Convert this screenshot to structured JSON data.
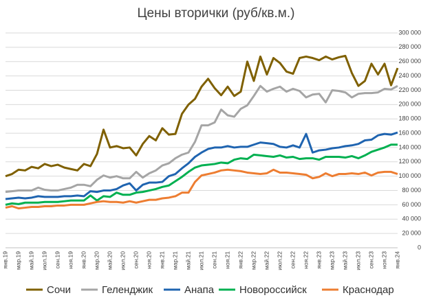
{
  "chart_data": {
    "type": "line",
    "title": "Цены вторички (руб/кв.м.)",
    "categories": [
      "янв.19",
      null,
      "мар.19",
      null,
      "май.19",
      null,
      "июл.19",
      null,
      "сен.19",
      null,
      "ноя.19",
      null,
      "янв.20",
      null,
      "мар.20",
      null,
      "май.20",
      null,
      "июл.20",
      null,
      "сен.20",
      null,
      "ноя.20",
      null,
      "янв.21",
      null,
      "мар.21",
      null,
      "май.21",
      null,
      "июл.21",
      null,
      "сен.21",
      null,
      "ноя.21",
      null,
      "янв.22",
      null,
      "мар.22",
      null,
      "май.22",
      null,
      "июл.22",
      null,
      "сен.22",
      null,
      "ноя.22",
      null,
      "янв.23",
      null,
      "мар.23",
      null,
      "май.23",
      null,
      "июл.23",
      null,
      "сен.23",
      null,
      "ноя.23",
      null,
      "янв.24"
    ],
    "series": [
      {
        "name": "Сочи",
        "color": "#7f6000",
        "values": [
          100000,
          103000,
          109000,
          108000,
          113000,
          111000,
          117000,
          114000,
          116000,
          112000,
          110000,
          108000,
          117000,
          114000,
          131000,
          165000,
          140000,
          142000,
          139000,
          140000,
          129000,
          145000,
          156000,
          150000,
          167000,
          158000,
          159000,
          187000,
          200000,
          208000,
          225000,
          236000,
          223000,
          213000,
          225000,
          212000,
          218000,
          260000,
          233000,
          267000,
          242000,
          265000,
          258000,
          246000,
          243000,
          265000,
          267000,
          265000,
          262000,
          267000,
          263000,
          266000,
          268000,
          244000,
          226000,
          233000,
          257000,
          242000,
          257000,
          227000,
          251000
        ]
      },
      {
        "name": "Геленджик",
        "color": "#a5a5a5",
        "values": [
          78000,
          79000,
          80000,
          80000,
          80000,
          84000,
          81000,
          80000,
          80000,
          82000,
          84000,
          88000,
          88000,
          86000,
          95000,
          101000,
          98000,
          100000,
          97000,
          97000,
          106000,
          98000,
          104000,
          108000,
          115000,
          118000,
          125000,
          130000,
          133000,
          148000,
          171000,
          171000,
          175000,
          193000,
          185000,
          183000,
          194000,
          199000,
          212000,
          226000,
          218000,
          222000,
          225000,
          218000,
          222000,
          219000,
          210000,
          214000,
          215000,
          203000,
          220000,
          219000,
          217000,
          210000,
          215000,
          216000,
          216000,
          217000,
          222000,
          221000,
          226000
        ]
      },
      {
        "name": "Анапа",
        "color": "#1f64b0",
        "values": [
          68000,
          69000,
          70000,
          69000,
          70000,
          72000,
          71000,
          71000,
          71000,
          72000,
          72000,
          73000,
          72000,
          79000,
          78000,
          80000,
          80000,
          82000,
          87000,
          90000,
          80000,
          88000,
          91000,
          91000,
          92000,
          100000,
          103000,
          111000,
          118000,
          127000,
          133000,
          138000,
          140000,
          140000,
          142000,
          140000,
          141000,
          141000,
          144000,
          147000,
          146000,
          145000,
          141000,
          140000,
          143000,
          140000,
          159000,
          133000,
          136000,
          137000,
          139000,
          140000,
          142000,
          143000,
          145000,
          150000,
          151000,
          157000,
          159000,
          158000,
          161000
        ]
      },
      {
        "name": "Новороссийск",
        "color": "#00b050",
        "values": [
          60000,
          62000,
          61000,
          63000,
          63000,
          63000,
          64000,
          64000,
          64000,
          65000,
          66000,
          66000,
          66000,
          73000,
          66000,
          72000,
          71000,
          77000,
          74000,
          74000,
          77000,
          78000,
          80000,
          82000,
          85000,
          87000,
          93000,
          99000,
          106000,
          112000,
          115000,
          116000,
          117000,
          119000,
          118000,
          123000,
          125000,
          124000,
          130000,
          129000,
          128000,
          127000,
          129000,
          126000,
          127000,
          124000,
          125000,
          125000,
          123000,
          127000,
          127000,
          127000,
          126000,
          128000,
          125000,
          129000,
          134000,
          137000,
          140000,
          144000,
          144000
        ]
      },
      {
        "name": "Краснодар",
        "color": "#ed7d31",
        "values": [
          56000,
          58000,
          55000,
          56000,
          57000,
          57000,
          58000,
          58000,
          59000,
          59000,
          60000,
          60000,
          60000,
          62000,
          64000,
          65000,
          64000,
          64000,
          63000,
          65000,
          63000,
          65000,
          67000,
          67000,
          69000,
          70000,
          72000,
          77000,
          77000,
          92000,
          101000,
          103000,
          105000,
          108000,
          109000,
          108000,
          107000,
          105000,
          104000,
          103000,
          104000,
          109000,
          105000,
          105000,
          104000,
          103000,
          102000,
          97000,
          99000,
          104000,
          100000,
          103000,
          103000,
          104000,
          103000,
          105000,
          101000,
          105000,
          106000,
          106000,
          103000
        ]
      }
    ],
    "ylim": [
      0,
      300000
    ],
    "yticks": [
      0,
      {
        "value": 20000,
        "label": "20 000"
      },
      {
        "value": 40000,
        "label": "40 000"
      },
      {
        "value": 60000,
        "label": "60 000"
      },
      {
        "value": 80000,
        "label": "80 000"
      },
      {
        "value": 100000,
        "label": "100 000"
      },
      {
        "value": 120000,
        "label": "120 000"
      },
      {
        "value": 140000,
        "label": "140 000"
      },
      {
        "value": 160000,
        "label": "160 000"
      },
      {
        "value": 180000,
        "label": "180 000"
      },
      {
        "value": 200000,
        "label": "200 000"
      },
      {
        "value": 220000,
        "label": "220 000"
      },
      {
        "value": 240000,
        "label": "240 000"
      },
      {
        "value": 260000,
        "label": "260 000"
      },
      {
        "value": 280000,
        "label": "280 000"
      },
      {
        "value": 300000,
        "label": "300 000"
      }
    ],
    "grid": true,
    "legend": "bottom"
  }
}
